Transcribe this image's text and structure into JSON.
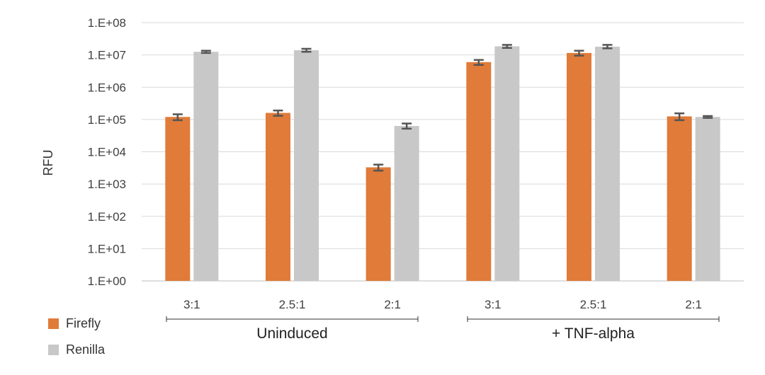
{
  "chart_data": {
    "type": "bar",
    "ylabel": "RFU",
    "xlabel": "",
    "yscale": "log",
    "ylim": [
      1,
      100000000
    ],
    "y_ticks": [
      "1.E+00",
      "1.E+01",
      "1.E+02",
      "1.E+03",
      "1.E+04",
      "1.E+05",
      "1.E+06",
      "1.E+07",
      "1.E+08"
    ],
    "grid": true,
    "legend_position": "bottom-left",
    "categories": [
      "3:1",
      "2.5:1",
      "2:1",
      "3:1",
      "2.5:1",
      "2:1"
    ],
    "groups": [
      {
        "label": "Uninduced",
        "categories": [
          "3:1",
          "2.5:1",
          "2:1"
        ]
      },
      {
        "label": "+ TNF-alpha",
        "categories": [
          "3:1",
          "2.5:1",
          "2:1"
        ]
      }
    ],
    "series": [
      {
        "name": "Firefly",
        "color": "#E07B39",
        "values": [
          120000,
          160000,
          3300,
          6000000,
          11500000,
          125000
        ],
        "error_low": [
          95000,
          130000,
          2600,
          4900000,
          9500000,
          95000
        ],
        "error_high": [
          145000,
          190000,
          4000,
          7000000,
          13500000,
          155000
        ]
      },
      {
        "name": "Renilla",
        "color": "#C8C8C8",
        "values": [
          12500000,
          14000000,
          63000,
          18500000,
          18000000,
          120000
        ],
        "error_low": [
          11500000,
          12500000,
          52000,
          16500000,
          16000000,
          112000
        ],
        "error_high": [
          13500000,
          15500000,
          75000,
          20500000,
          20500000,
          128000
        ]
      }
    ]
  }
}
